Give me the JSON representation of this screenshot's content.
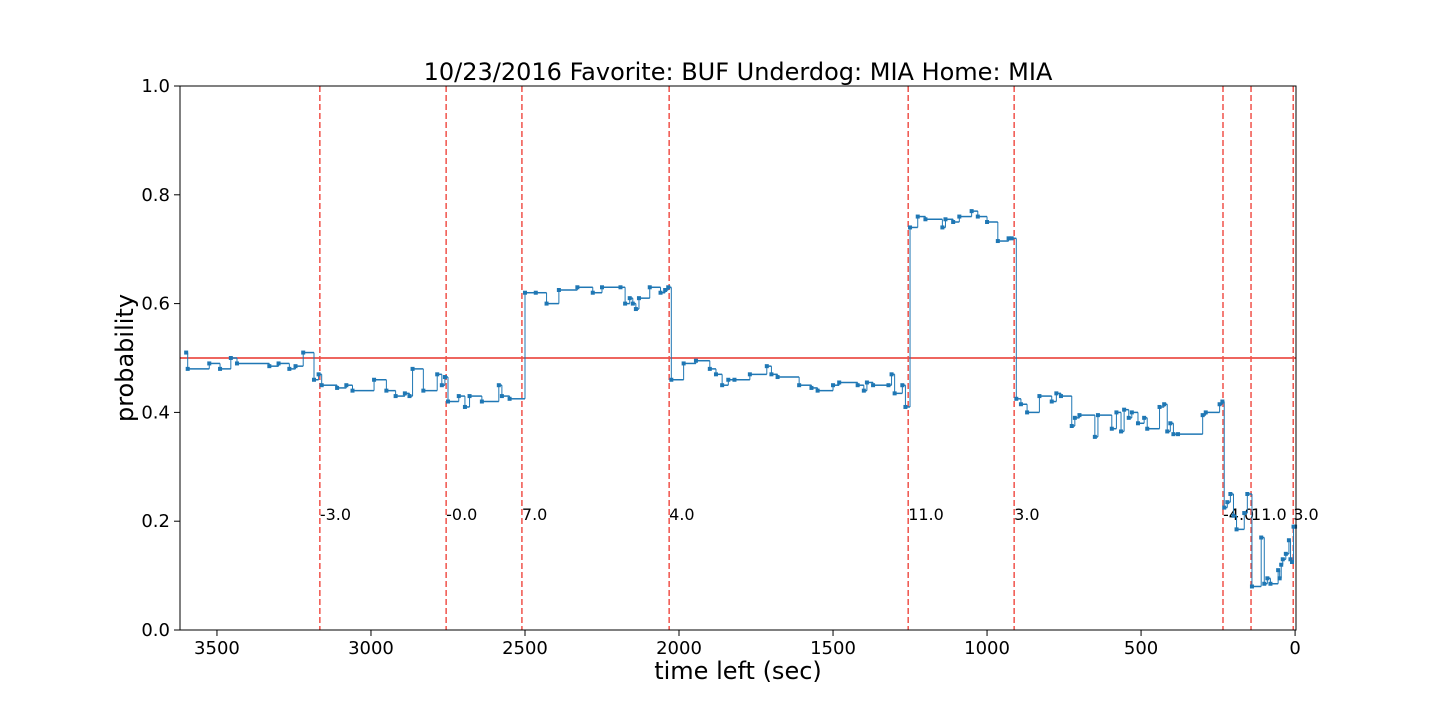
{
  "chart_data": {
    "type": "step",
    "title": "10/23/2016 Favorite: BUF Underdog: MIA Home: MIA",
    "x_label": "time left (sec)",
    "y_label": "probability",
    "color": "#1f77b4",
    "x": [
      3600,
      3595,
      3525,
      3490,
      3455,
      3435,
      3330,
      3300,
      3265,
      3245,
      3220,
      3185,
      3170,
      3160,
      3110,
      3080,
      3060,
      2990,
      2950,
      2920,
      2890,
      2875,
      2865,
      2830,
      2785,
      2770,
      2760,
      2750,
      2715,
      2695,
      2680,
      2640,
      2585,
      2575,
      2550,
      2500,
      2465,
      2430,
      2390,
      2330,
      2280,
      2250,
      2190,
      2175,
      2160,
      2150,
      2140,
      2130,
      2095,
      2060,
      2045,
      2035,
      2025,
      1985,
      1945,
      1900,
      1880,
      1860,
      1840,
      1820,
      1770,
      1715,
      1700,
      1680,
      1610,
      1570,
      1550,
      1500,
      1480,
      1420,
      1400,
      1390,
      1370,
      1320,
      1310,
      1300,
      1275,
      1265,
      1250,
      1225,
      1200,
      1145,
      1135,
      1110,
      1090,
      1050,
      1030,
      1000,
      965,
      930,
      920,
      905,
      890,
      870,
      830,
      790,
      775,
      760,
      725,
      715,
      700,
      650,
      640,
      595,
      580,
      565,
      555,
      540,
      530,
      510,
      490,
      480,
      440,
      425,
      415,
      405,
      395,
      380,
      300,
      290,
      245,
      236,
      230,
      220,
      210,
      200,
      190,
      165,
      155,
      140,
      110,
      100,
      90,
      80,
      55,
      50,
      45,
      40,
      30,
      20,
      15,
      10,
      5,
      0
    ],
    "values": [
      0.51,
      0.48,
      0.49,
      0.48,
      0.5,
      0.49,
      0.485,
      0.49,
      0.48,
      0.485,
      0.51,
      0.46,
      0.47,
      0.45,
      0.445,
      0.45,
      0.44,
      0.46,
      0.44,
      0.43,
      0.435,
      0.43,
      0.48,
      0.44,
      0.47,
      0.45,
      0.465,
      0.42,
      0.43,
      0.41,
      0.43,
      0.42,
      0.45,
      0.43,
      0.425,
      0.62,
      0.62,
      0.6,
      0.625,
      0.63,
      0.62,
      0.63,
      0.63,
      0.6,
      0.61,
      0.6,
      0.59,
      0.61,
      0.63,
      0.62,
      0.625,
      0.63,
      0.46,
      0.49,
      0.495,
      0.48,
      0.47,
      0.45,
      0.46,
      0.46,
      0.47,
      0.485,
      0.47,
      0.465,
      0.45,
      0.445,
      0.44,
      0.45,
      0.455,
      0.45,
      0.44,
      0.455,
      0.45,
      0.45,
      0.47,
      0.435,
      0.45,
      0.41,
      0.74,
      0.76,
      0.755,
      0.74,
      0.755,
      0.75,
      0.76,
      0.77,
      0.76,
      0.75,
      0.715,
      0.72,
      0.72,
      0.425,
      0.415,
      0.4,
      0.43,
      0.42,
      0.435,
      0.43,
      0.375,
      0.39,
      0.395,
      0.355,
      0.395,
      0.37,
      0.4,
      0.365,
      0.405,
      0.39,
      0.4,
      0.38,
      0.39,
      0.37,
      0.41,
      0.415,
      0.365,
      0.38,
      0.36,
      0.36,
      0.395,
      0.4,
      0.415,
      0.42,
      0.225,
      0.235,
      0.25,
      0.21,
      0.185,
      0.215,
      0.25,
      0.08,
      0.17,
      0.085,
      0.095,
      0.085,
      0.11,
      0.095,
      0.12,
      0.13,
      0.14,
      0.165,
      0.13,
      0.125,
      0.19,
      0.19
    ],
    "reference_line": {
      "value": 0.5,
      "color": "#e8342a"
    },
    "events": [
      {
        "x": 3166,
        "label": "-3.0"
      },
      {
        "x": 2756,
        "label": "-0.0"
      },
      {
        "x": 2510,
        "label": "7.0"
      },
      {
        "x": 2032,
        "label": "4.0"
      },
      {
        "x": 1256,
        "label": "11.0"
      },
      {
        "x": 912,
        "label": "3.0"
      },
      {
        "x": 234,
        "label": "-4.0"
      },
      {
        "x": 143,
        "label": "11.0"
      },
      {
        "x": 6,
        "label": "3.0"
      }
    ],
    "event_color": "#f0524a",
    "xlim": [
      3620,
      -3
    ],
    "ylim": [
      0,
      1
    ],
    "xticks": [
      3500,
      3000,
      2500,
      2000,
      1500,
      1000,
      500,
      0
    ],
    "yticks": [
      {
        "value": 0,
        "label": "0.0"
      },
      {
        "value": 0.2,
        "label": "0.2"
      },
      {
        "value": 0.4,
        "label": "0.4"
      },
      {
        "value": 0.6,
        "label": "0.6"
      },
      {
        "value": 0.8,
        "label": "0.8"
      },
      {
        "value": 1,
        "label": "1.0"
      }
    ]
  }
}
